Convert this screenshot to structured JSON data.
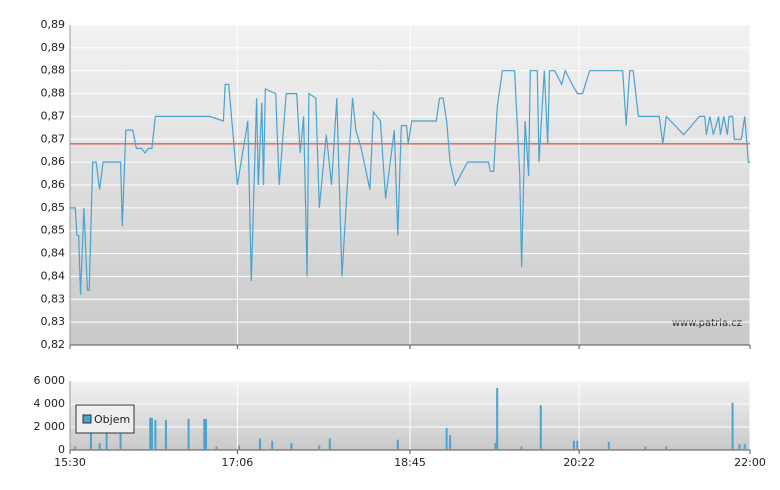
{
  "chart_data": [
    {
      "type": "line",
      "x": [
        "15:30",
        "15:33",
        "15:34",
        "15:35",
        "15:36",
        "15:38",
        "15:40",
        "15:41",
        "15:43",
        "15:45",
        "15:47",
        "15:49",
        "15:59",
        "16:00",
        "16:02",
        "16:06",
        "16:08",
        "16:11",
        "16:13",
        "16:15",
        "16:17",
        "16:19",
        "16:50",
        "16:58",
        "16:59",
        "17:01",
        "17:06",
        "17:12",
        "17:14",
        "17:17",
        "17:18",
        "17:20",
        "17:21",
        "17:22",
        "17:28",
        "17:30",
        "17:34",
        "17:40",
        "17:42",
        "17:44",
        "17:46",
        "17:47",
        "17:51",
        "17:53",
        "17:57",
        "18:00",
        "18:03",
        "18:06",
        "18:12",
        "18:14",
        "18:17",
        "18:22",
        "18:24",
        "18:28",
        "18:31",
        "18:36",
        "18:38",
        "18:40",
        "18:43",
        "18:44",
        "18:46",
        "19:00",
        "19:02",
        "19:04",
        "19:06",
        "19:08",
        "19:11",
        "19:18",
        "19:30",
        "19:31",
        "19:33",
        "19:35",
        "19:38",
        "19:45",
        "19:48",
        "19:49",
        "19:51",
        "19:53",
        "19:54",
        "19:58",
        "19:59",
        "20:02",
        "20:04",
        "20:05",
        "20:08",
        "20:12",
        "20:14",
        "20:18",
        "20:21",
        "20:24",
        "20:28",
        "20:47",
        "20:49",
        "20:51",
        "20:53",
        "20:56",
        "21:08",
        "21:10",
        "21:12",
        "21:22",
        "21:31",
        "21:34",
        "21:35",
        "21:37",
        "21:39",
        "21:42",
        "21:43",
        "21:45",
        "21:47",
        "21:48",
        "21:50",
        "21:51",
        "21:55",
        "21:57",
        "21:59",
        "22:00"
      ],
      "values": [
        0.85,
        0.85,
        0.844,
        0.844,
        0.831,
        0.85,
        0.832,
        0.832,
        0.86,
        0.86,
        0.854,
        0.86,
        0.86,
        0.846,
        0.867,
        0.867,
        0.863,
        0.863,
        0.862,
        0.863,
        0.863,
        0.87,
        0.87,
        0.869,
        0.877,
        0.877,
        0.855,
        0.869,
        0.834,
        0.874,
        0.855,
        0.873,
        0.855,
        0.876,
        0.875,
        0.855,
        0.875,
        0.875,
        0.862,
        0.87,
        0.835,
        0.875,
        0.874,
        0.85,
        0.866,
        0.855,
        0.874,
        0.835,
        0.874,
        0.867,
        0.863,
        0.854,
        0.871,
        0.869,
        0.852,
        0.867,
        0.844,
        0.868,
        0.868,
        0.864,
        0.869,
        0.869,
        0.874,
        0.874,
        0.869,
        0.86,
        0.855,
        0.86,
        0.86,
        0.858,
        0.858,
        0.872,
        0.88,
        0.88,
        0.857,
        0.837,
        0.869,
        0.857,
        0.88,
        0.88,
        0.86,
        0.88,
        0.864,
        0.88,
        0.88,
        0.877,
        0.88,
        0.877,
        0.875,
        0.875,
        0.88,
        0.88,
        0.868,
        0.88,
        0.88,
        0.87,
        0.87,
        0.864,
        0.87,
        0.866,
        0.87,
        0.87,
        0.866,
        0.87,
        0.866,
        0.87,
        0.866,
        0.87,
        0.866,
        0.87,
        0.87,
        0.865,
        0.865,
        0.87,
        0.86,
        0.86
      ],
      "color": "#4aa3cf",
      "reference_value": 0.864,
      "reference_color": "#cc3333",
      "xlim": [
        "15:30",
        "22:00"
      ],
      "ylim": [
        0.82,
        0.89
      ],
      "yticks": [
        {
          "value": 0.82,
          "label": "0,82"
        },
        {
          "value": 0.825,
          "label": "0,83"
        },
        {
          "value": 0.83,
          "label": "0,83"
        },
        {
          "value": 0.835,
          "label": "0,84"
        },
        {
          "value": 0.84,
          "label": "0,84"
        },
        {
          "value": 0.845,
          "label": "0,85"
        },
        {
          "value": 0.85,
          "label": "0,85"
        },
        {
          "value": 0.855,
          "label": "0,86"
        },
        {
          "value": 0.86,
          "label": "0,86"
        },
        {
          "value": 0.865,
          "label": "0,87"
        },
        {
          "value": 0.87,
          "label": "0,87"
        },
        {
          "value": 0.875,
          "label": "0,88"
        },
        {
          "value": 0.88,
          "label": "0,88"
        },
        {
          "value": 0.885,
          "label": "0,89"
        },
        {
          "value": 0.89,
          "label": "0,89"
        }
      ],
      "grid": true,
      "watermark": "www.patria.cz"
    },
    {
      "type": "bar",
      "x": [
        "15:33",
        "15:42",
        "15:47",
        "15:51",
        "15:59",
        "16:16",
        "16:17",
        "16:19",
        "16:25",
        "16:38",
        "16:47",
        "16:48",
        "16:54",
        "17:07",
        "17:19",
        "17:26",
        "17:37",
        "17:53",
        "17:59",
        "18:38",
        "19:06",
        "19:08",
        "19:34",
        "19:35",
        "19:49",
        "20:00",
        "20:19",
        "20:21",
        "20:39",
        "21:00",
        "21:12",
        "21:50",
        "21:54",
        "21:57"
      ],
      "series": [
        {
          "name": "Objem",
          "color": "#4aa3cf",
          "values": [
            300,
            2000,
            600,
            1500,
            1900,
            2800,
            2800,
            2600,
            2600,
            2700,
            2700,
            2700,
            300,
            400,
            1000,
            800,
            600,
            400,
            1000,
            900,
            1900,
            1300,
            600,
            5400,
            300,
            3900,
            800,
            800,
            700,
            300,
            300,
            4100,
            500,
            500
          ]
        }
      ],
      "xlim": [
        "15:30",
        "22:00"
      ],
      "xticks": [
        "15:30",
        "17:06",
        "18:45",
        "20:22",
        "22:00"
      ],
      "ylim": [
        0,
        6000
      ],
      "yticks": [
        0,
        {
          "value": 2000,
          "label": "2 000"
        },
        {
          "value": 4000,
          "label": "4 000"
        },
        {
          "value": 6000,
          "label": "6 000"
        }
      ],
      "grid": true,
      "legend": "top-left"
    }
  ]
}
